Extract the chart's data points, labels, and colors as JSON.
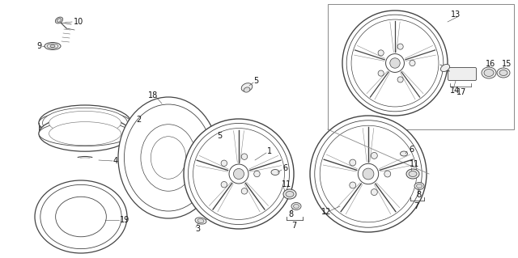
{
  "bg_color": "#ffffff",
  "fig_width": 6.4,
  "fig_height": 3.19,
  "dpi": 100,
  "line_color": "#444444",
  "label_fontsize": 7
}
